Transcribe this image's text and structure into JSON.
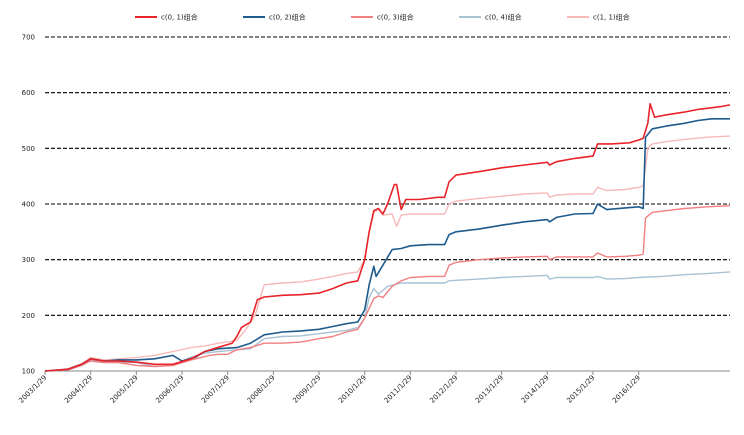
{
  "chart_data": {
    "type": "line",
    "title": "",
    "xlabel": "",
    "ylabel": "",
    "ylim": [
      100,
      700
    ],
    "yticks": [
      "100",
      "200",
      "300",
      "400",
      "500",
      "600",
      "700"
    ],
    "xticks": [
      "2003/1/29",
      "2004/1/29",
      "2005/1/29",
      "2006/1/29",
      "2007/1/29",
      "2008/1/29",
      "2009/1/29",
      "2010/1/29",
      "2011/1/29",
      "2012/1/29",
      "2013/1/29",
      "2014/1/29",
      "2015/1/29",
      "2016/1/29"
    ],
    "grid": true,
    "legend_position": "top",
    "series": [
      {
        "name": "c(0, 1)组合",
        "color": "#e8242a",
        "width": 1.6,
        "points": [
          [
            0,
            100
          ],
          [
            0.5,
            103
          ],
          [
            0.8,
            112
          ],
          [
            1.0,
            122
          ],
          [
            1.3,
            118
          ],
          [
            1.6,
            118
          ],
          [
            2.0,
            116
          ],
          [
            2.4,
            112
          ],
          [
            2.8,
            112
          ],
          [
            3.2,
            122
          ],
          [
            3.5,
            135
          ],
          [
            3.7,
            140
          ],
          [
            3.9,
            145
          ],
          [
            4.1,
            150
          ],
          [
            4.2,
            162
          ],
          [
            4.3,
            178
          ],
          [
            4.5,
            188
          ],
          [
            4.65,
            228
          ],
          [
            4.8,
            233
          ],
          [
            5.2,
            236
          ],
          [
            5.6,
            237
          ],
          [
            6.0,
            240
          ],
          [
            6.3,
            248
          ],
          [
            6.6,
            258
          ],
          [
            6.85,
            262
          ],
          [
            7.0,
            300
          ],
          [
            7.1,
            350
          ],
          [
            7.2,
            388
          ],
          [
            7.3,
            392
          ],
          [
            7.4,
            382
          ],
          [
            7.5,
            400
          ],
          [
            7.65,
            435
          ],
          [
            7.7,
            435
          ],
          [
            7.8,
            390
          ],
          [
            7.9,
            408
          ],
          [
            8.2,
            408
          ],
          [
            8.6,
            412
          ],
          [
            8.75,
            412
          ],
          [
            8.85,
            440
          ],
          [
            9.0,
            452
          ],
          [
            9.5,
            458
          ],
          [
            10.0,
            465
          ],
          [
            10.5,
            470
          ],
          [
            11.0,
            475
          ],
          [
            11.05,
            470
          ],
          [
            11.2,
            476
          ],
          [
            11.6,
            482
          ],
          [
            12.0,
            486
          ],
          [
            12.1,
            508
          ],
          [
            12.4,
            508
          ],
          [
            12.8,
            510
          ],
          [
            13.0,
            515
          ],
          [
            13.1,
            518
          ],
          [
            13.2,
            545
          ],
          [
            13.25,
            580
          ],
          [
            13.35,
            556
          ],
          [
            13.6,
            560
          ],
          [
            14.0,
            565
          ],
          [
            14.3,
            570
          ],
          [
            14.5,
            572
          ],
          [
            14.8,
            575
          ],
          [
            15.0,
            578
          ]
        ]
      },
      {
        "name": "c(0, 2)组合",
        "color": "#1e5b8c",
        "width": 1.6,
        "points": [
          [
            0,
            100
          ],
          [
            0.5,
            103
          ],
          [
            0.8,
            112
          ],
          [
            1.0,
            122
          ],
          [
            1.3,
            118
          ],
          [
            1.6,
            120
          ],
          [
            2.0,
            120
          ],
          [
            2.4,
            122
          ],
          [
            2.8,
            128
          ],
          [
            3.0,
            118
          ],
          [
            3.3,
            125
          ],
          [
            3.5,
            135
          ],
          [
            3.8,
            140
          ],
          [
            4.2,
            142
          ],
          [
            4.5,
            150
          ],
          [
            4.8,
            165
          ],
          [
            5.2,
            170
          ],
          [
            5.6,
            172
          ],
          [
            6.0,
            175
          ],
          [
            6.3,
            180
          ],
          [
            6.6,
            185
          ],
          [
            6.85,
            188
          ],
          [
            7.0,
            210
          ],
          [
            7.1,
            255
          ],
          [
            7.2,
            288
          ],
          [
            7.25,
            270
          ],
          [
            7.4,
            290
          ],
          [
            7.6,
            318
          ],
          [
            7.8,
            320
          ],
          [
            8.0,
            325
          ],
          [
            8.4,
            327
          ],
          [
            8.75,
            327
          ],
          [
            8.85,
            345
          ],
          [
            9.0,
            350
          ],
          [
            9.5,
            355
          ],
          [
            10.0,
            362
          ],
          [
            10.5,
            368
          ],
          [
            11.0,
            372
          ],
          [
            11.05,
            368
          ],
          [
            11.2,
            376
          ],
          [
            11.6,
            382
          ],
          [
            12.0,
            383
          ],
          [
            12.1,
            400
          ],
          [
            12.3,
            390
          ],
          [
            12.7,
            393
          ],
          [
            13.0,
            395
          ],
          [
            13.1,
            392
          ],
          [
            13.15,
            520
          ],
          [
            13.3,
            535
          ],
          [
            13.6,
            540
          ],
          [
            14.0,
            545
          ],
          [
            14.3,
            550
          ],
          [
            14.6,
            553
          ],
          [
            15.0,
            553
          ]
        ]
      },
      {
        "name": "c(0, 3)组合",
        "color": "#f27f80",
        "width": 1.4,
        "points": [
          [
            0,
            100
          ],
          [
            0.5,
            102
          ],
          [
            0.8,
            110
          ],
          [
            1.0,
            118
          ],
          [
            1.3,
            115
          ],
          [
            1.6,
            115
          ],
          [
            2.0,
            110
          ],
          [
            2.4,
            108
          ],
          [
            2.8,
            110
          ],
          [
            3.2,
            120
          ],
          [
            3.6,
            128
          ],
          [
            3.8,
            130
          ],
          [
            4.0,
            130
          ],
          [
            4.2,
            138
          ],
          [
            4.5,
            142
          ],
          [
            4.8,
            150
          ],
          [
            5.2,
            150
          ],
          [
            5.6,
            152
          ],
          [
            6.0,
            158
          ],
          [
            6.3,
            162
          ],
          [
            6.6,
            170
          ],
          [
            6.85,
            175
          ],
          [
            7.0,
            195
          ],
          [
            7.2,
            230
          ],
          [
            7.3,
            235
          ],
          [
            7.4,
            232
          ],
          [
            7.6,
            252
          ],
          [
            7.8,
            262
          ],
          [
            8.0,
            268
          ],
          [
            8.4,
            270
          ],
          [
            8.75,
            270
          ],
          [
            8.85,
            290
          ],
          [
            9.0,
            295
          ],
          [
            9.5,
            300
          ],
          [
            10.0,
            303
          ],
          [
            10.5,
            305
          ],
          [
            11.0,
            306
          ],
          [
            11.05,
            300
          ],
          [
            11.2,
            305
          ],
          [
            11.6,
            305
          ],
          [
            12.0,
            305
          ],
          [
            12.1,
            312
          ],
          [
            12.3,
            305
          ],
          [
            12.7,
            306
          ],
          [
            13.0,
            308
          ],
          [
            13.1,
            310
          ],
          [
            13.15,
            375
          ],
          [
            13.3,
            385
          ],
          [
            13.6,
            388
          ],
          [
            14.0,
            392
          ],
          [
            14.5,
            395
          ],
          [
            15.0,
            397
          ]
        ]
      },
      {
        "name": "c(0, 4)组合",
        "color": "#a7c2d4",
        "width": 1.4,
        "points": [
          [
            0,
            100
          ],
          [
            0.5,
            102
          ],
          [
            0.8,
            110
          ],
          [
            1.0,
            120
          ],
          [
            1.3,
            116
          ],
          [
            1.6,
            116
          ],
          [
            2.0,
            115
          ],
          [
            2.4,
            108
          ],
          [
            2.8,
            110
          ],
          [
            3.2,
            125
          ],
          [
            3.5,
            132
          ],
          [
            3.8,
            135
          ],
          [
            4.2,
            138
          ],
          [
            4.5,
            140
          ],
          [
            4.8,
            158
          ],
          [
            5.2,
            162
          ],
          [
            5.6,
            163
          ],
          [
            6.0,
            167
          ],
          [
            6.3,
            170
          ],
          [
            6.6,
            173
          ],
          [
            6.85,
            178
          ],
          [
            7.0,
            195
          ],
          [
            7.1,
            232
          ],
          [
            7.2,
            248
          ],
          [
            7.3,
            238
          ],
          [
            7.5,
            252
          ],
          [
            7.8,
            258
          ],
          [
            8.2,
            258
          ],
          [
            8.75,
            258
          ],
          [
            8.85,
            262
          ],
          [
            9.0,
            263
          ],
          [
            9.5,
            265
          ],
          [
            10.0,
            268
          ],
          [
            10.5,
            270
          ],
          [
            11.0,
            272
          ],
          [
            11.05,
            265
          ],
          [
            11.2,
            268
          ],
          [
            11.6,
            268
          ],
          [
            12.0,
            268
          ],
          [
            12.1,
            270
          ],
          [
            12.3,
            265
          ],
          [
            12.7,
            266
          ],
          [
            13.0,
            268
          ],
          [
            13.5,
            270
          ],
          [
            14.0,
            273
          ],
          [
            14.5,
            275
          ],
          [
            15.0,
            278
          ]
        ]
      },
      {
        "name": "c(1, 1)组合",
        "color": "#f8b9b9",
        "width": 1.4,
        "points": [
          [
            0,
            100
          ],
          [
            0.5,
            104
          ],
          [
            0.8,
            112
          ],
          [
            1.0,
            124
          ],
          [
            1.3,
            120
          ],
          [
            1.6,
            122
          ],
          [
            2.0,
            124
          ],
          [
            2.4,
            128
          ],
          [
            2.8,
            135
          ],
          [
            3.2,
            142
          ],
          [
            3.5,
            145
          ],
          [
            3.8,
            150
          ],
          [
            4.2,
            155
          ],
          [
            4.4,
            175
          ],
          [
            4.6,
            200
          ],
          [
            4.8,
            255
          ],
          [
            5.2,
            258
          ],
          [
            5.6,
            260
          ],
          [
            6.0,
            265
          ],
          [
            6.3,
            270
          ],
          [
            6.6,
            275
          ],
          [
            6.85,
            278
          ],
          [
            7.0,
            300
          ],
          [
            7.1,
            352
          ],
          [
            7.2,
            385
          ],
          [
            7.3,
            390
          ],
          [
            7.4,
            380
          ],
          [
            7.6,
            382
          ],
          [
            7.7,
            360
          ],
          [
            7.8,
            380
          ],
          [
            8.0,
            382
          ],
          [
            8.4,
            382
          ],
          [
            8.75,
            382
          ],
          [
            8.85,
            400
          ],
          [
            9.0,
            405
          ],
          [
            9.5,
            410
          ],
          [
            10.0,
            414
          ],
          [
            10.5,
            418
          ],
          [
            11.0,
            420
          ],
          [
            11.05,
            412
          ],
          [
            11.2,
            416
          ],
          [
            11.6,
            418
          ],
          [
            12.0,
            418
          ],
          [
            12.1,
            430
          ],
          [
            12.3,
            424
          ],
          [
            12.7,
            426
          ],
          [
            13.0,
            430
          ],
          [
            13.1,
            432
          ],
          [
            13.2,
            500
          ],
          [
            13.3,
            508
          ],
          [
            13.6,
            512
          ],
          [
            14.0,
            516
          ],
          [
            14.5,
            520
          ],
          [
            15.0,
            522
          ]
        ]
      }
    ]
  }
}
